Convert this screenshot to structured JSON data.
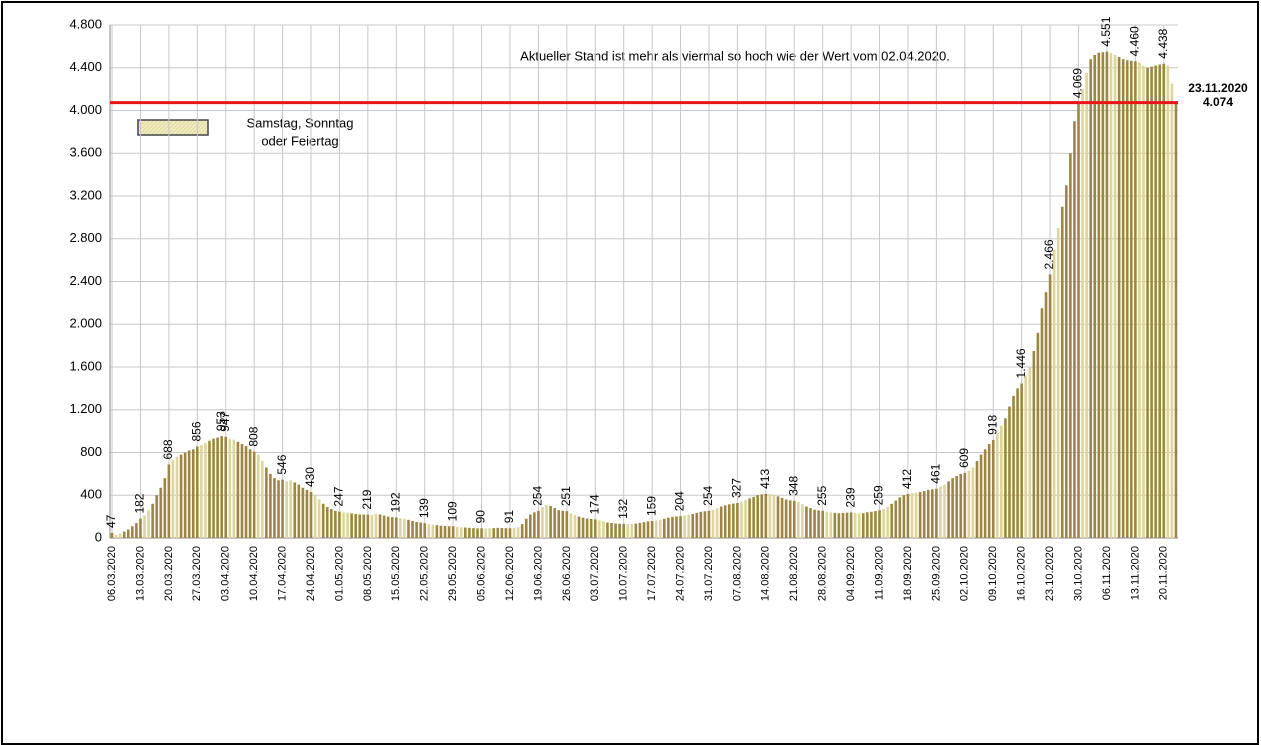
{
  "chart_data": {
    "type": "bar",
    "annotation": "Aktueller Stand ist mehr als viermal so hoch wie der Wert vom 02.04.2020.",
    "legend": {
      "label_lines": [
        "Samstag, Sonntag",
        "oder Feiertag"
      ]
    },
    "weekend_color": "#ddd59c",
    "reference_line": {
      "value": 4074,
      "color": "#e8141a",
      "label_lines": [
        "23.11.2020",
        "4.074"
      ]
    },
    "ylim": [
      0,
      4800
    ],
    "yticks": [
      0,
      400,
      800,
      {
        "value": 1200,
        "label": "1.200"
      },
      {
        "value": 1600,
        "label": "1.600"
      },
      {
        "value": 2000,
        "label": "2.000"
      },
      {
        "value": 2400,
        "label": "2.400"
      },
      {
        "value": 2800,
        "label": "2.800"
      },
      {
        "value": 3200,
        "label": "3.200"
      },
      {
        "value": 3600,
        "label": "3.600"
      },
      {
        "value": 4000,
        "label": "4.000"
      },
      {
        "value": 4400,
        "label": "4.400"
      },
      {
        "value": 4800,
        "label": "4.800"
      }
    ],
    "grid": true,
    "categories": [
      "06.03.2020",
      null,
      null,
      null,
      null,
      null,
      null,
      "13.03.2020",
      null,
      null,
      null,
      null,
      null,
      null,
      "20.03.2020",
      null,
      null,
      null,
      null,
      null,
      null,
      "27.03.2020",
      null,
      null,
      null,
      null,
      null,
      null,
      "03.04.2020",
      null,
      null,
      null,
      null,
      null,
      null,
      "10.04.2020",
      null,
      null,
      null,
      null,
      null,
      null,
      "17.04.2020",
      null,
      null,
      null,
      null,
      null,
      null,
      "24.04.2020",
      null,
      null,
      null,
      null,
      null,
      null,
      "01.05.2020",
      null,
      null,
      null,
      null,
      null,
      null,
      "08.05.2020",
      null,
      null,
      null,
      null,
      null,
      null,
      "15.05.2020",
      null,
      null,
      null,
      null,
      null,
      null,
      "22.05.2020",
      null,
      null,
      null,
      null,
      null,
      null,
      "29.05.2020",
      null,
      null,
      null,
      null,
      null,
      null,
      "05.06.2020",
      null,
      null,
      null,
      null,
      null,
      null,
      "12.06.2020",
      null,
      null,
      null,
      null,
      null,
      null,
      "19.06.2020",
      null,
      null,
      null,
      null,
      null,
      null,
      "26.06.2020",
      null,
      null,
      null,
      null,
      null,
      null,
      "03.07.2020",
      null,
      null,
      null,
      null,
      null,
      null,
      "10.07.2020",
      null,
      null,
      null,
      null,
      null,
      null,
      "17.07.2020",
      null,
      null,
      null,
      null,
      null,
      null,
      "24.07.2020",
      null,
      null,
      null,
      null,
      null,
      null,
      "31.07.2020",
      null,
      null,
      null,
      null,
      null,
      null,
      "07.08.2020",
      null,
      null,
      null,
      null,
      null,
      null,
      "14.08.2020",
      null,
      null,
      null,
      null,
      null,
      null,
      "21.08.2020",
      null,
      null,
      null,
      null,
      null,
      null,
      "28.08.2020",
      null,
      null,
      null,
      null,
      null,
      null,
      "04.09.2020",
      null,
      null,
      null,
      null,
      null,
      null,
      "11.09.2020",
      null,
      null,
      null,
      null,
      null,
      null,
      "18.09.2020",
      null,
      null,
      null,
      null,
      null,
      null,
      "25.09.2020",
      null,
      null,
      null,
      null,
      null,
      null,
      "02.10.2020",
      null,
      null,
      null,
      null,
      null,
      null,
      "09.10.2020",
      null,
      null,
      null,
      null,
      null,
      null,
      "16.10.2020",
      null,
      null,
      null,
      null,
      null,
      null,
      "23.10.2020",
      null,
      null,
      null,
      null,
      null,
      null,
      "30.10.2020",
      null,
      null,
      null,
      null,
      null,
      null,
      "06.11.2020",
      null,
      null,
      null,
      null,
      null,
      null,
      "13.11.2020",
      null,
      null,
      null,
      null,
      null,
      null,
      "20.11.2020",
      null,
      null,
      null
    ],
    "series": [
      {
        "color": "#9c8640",
        "values": [
          47,
          30,
          40,
          60,
          80,
          110,
          140,
          182,
          210,
          260,
          320,
          400,
          470,
          560,
          688,
          730,
          760,
          780,
          800,
          820,
          830,
          856,
          870,
          890,
          910,
          930,
          940,
          953,
          947,
          930,
          920,
          900,
          880,
          860,
          830,
          808,
          780,
          720,
          660,
          600,
          560,
          540,
          546,
          530,
          540,
          520,
          500,
          470,
          450,
          430,
          400,
          360,
          320,
          290,
          270,
          255,
          247,
          240,
          235,
          230,
          225,
          220,
          220,
          219,
          215,
          225,
          220,
          210,
          200,
          195,
          192,
          185,
          180,
          170,
          160,
          150,
          145,
          139,
          130,
          125,
          120,
          115,
          112,
          110,
          109,
          105,
          100,
          98,
          95,
          92,
          90,
          90,
          88,
          90,
          92,
          95,
          93,
          92,
          91,
          95,
          100,
          130,
          180,
          220,
          240,
          254,
          290,
          310,
          300,
          280,
          260,
          255,
          251,
          230,
          215,
          200,
          190,
          182,
          178,
          174,
          165,
          155,
          145,
          140,
          135,
          133,
          132,
          130,
          132,
          135,
          140,
          148,
          155,
          159,
          165,
          170,
          180,
          190,
          198,
          202,
          204,
          210,
          218,
          225,
          235,
          245,
          250,
          254,
          265,
          280,
          295,
          305,
          315,
          322,
          327,
          340,
          355,
          370,
          385,
          400,
          408,
          413,
          410,
          400,
          390,
          375,
          360,
          352,
          348,
          335,
          315,
          295,
          280,
          265,
          258,
          255,
          245,
          240,
          235,
          232,
          235,
          237,
          239,
          235,
          230,
          232,
          240,
          245,
          252,
          259,
          270,
          290,
          320,
          350,
          380,
          400,
          412,
          420,
          425,
          430,
          440,
          450,
          455,
          461,
          480,
          500,
          530,
          560,
          580,
          600,
          609,
          630,
          660,
          720,
          780,
          830,
          880,
          918,
          980,
          1050,
          1120,
          1230,
          1330,
          1400,
          1446,
          1520,
          1600,
          1750,
          1920,
          2150,
          2300,
          2466,
          2700,
          2900,
          3100,
          3300,
          3600,
          3900,
          4069,
          4200,
          4350,
          4480,
          4520,
          4540,
          4545,
          4551,
          4540,
          4520,
          4500,
          4480,
          4470,
          4465,
          4460,
          4450,
          4420,
          4400,
          4410,
          4420,
          4430,
          4438,
          4420,
          4250,
          4074
        ],
        "value_labels": [
          "47",
          null,
          null,
          null,
          null,
          null,
          null,
          "182",
          null,
          null,
          null,
          null,
          null,
          null,
          "688",
          null,
          null,
          null,
          null,
          null,
          null,
          "856",
          null,
          null,
          null,
          null,
          null,
          "953",
          "947",
          null,
          null,
          null,
          null,
          null,
          null,
          "808",
          null,
          null,
          null,
          null,
          null,
          null,
          "546",
          null,
          null,
          null,
          null,
          null,
          null,
          "430",
          null,
          null,
          null,
          null,
          null,
          null,
          "247",
          null,
          null,
          null,
          null,
          null,
          null,
          "219",
          null,
          null,
          null,
          null,
          null,
          null,
          "192",
          null,
          null,
          null,
          null,
          null,
          null,
          "139",
          null,
          null,
          null,
          null,
          null,
          null,
          "109",
          null,
          null,
          null,
          null,
          null,
          null,
          "90",
          null,
          null,
          null,
          null,
          null,
          null,
          "91",
          null,
          null,
          null,
          null,
          null,
          null,
          "254",
          null,
          null,
          null,
          null,
          null,
          null,
          "251",
          null,
          null,
          null,
          null,
          null,
          null,
          "174",
          null,
          null,
          null,
          null,
          null,
          null,
          "132",
          null,
          null,
          null,
          null,
          null,
          null,
          "159",
          null,
          null,
          null,
          null,
          null,
          null,
          "204",
          null,
          null,
          null,
          null,
          null,
          null,
          "254",
          null,
          null,
          null,
          null,
          null,
          null,
          "327",
          null,
          null,
          null,
          null,
          null,
          null,
          "413",
          null,
          null,
          null,
          null,
          null,
          null,
          "348",
          null,
          null,
          null,
          null,
          null,
          null,
          "255",
          null,
          null,
          null,
          null,
          null,
          null,
          "239",
          null,
          null,
          null,
          null,
          null,
          null,
          "259",
          null,
          null,
          null,
          null,
          null,
          null,
          "412",
          null,
          null,
          null,
          null,
          null,
          null,
          "461",
          null,
          null,
          null,
          null,
          null,
          null,
          "609",
          null,
          null,
          null,
          null,
          null,
          null,
          "918",
          null,
          null,
          null,
          null,
          null,
          null,
          "1.446",
          null,
          null,
          null,
          null,
          null,
          null,
          "2.466",
          null,
          null,
          null,
          null,
          null,
          null,
          "4.069",
          null,
          null,
          null,
          null,
          null,
          null,
          "4.551",
          null,
          null,
          null,
          null,
          null,
          null,
          "4.460",
          null,
          null,
          null,
          null,
          null,
          null,
          "4.438",
          null,
          null,
          null
        ]
      }
    ]
  }
}
